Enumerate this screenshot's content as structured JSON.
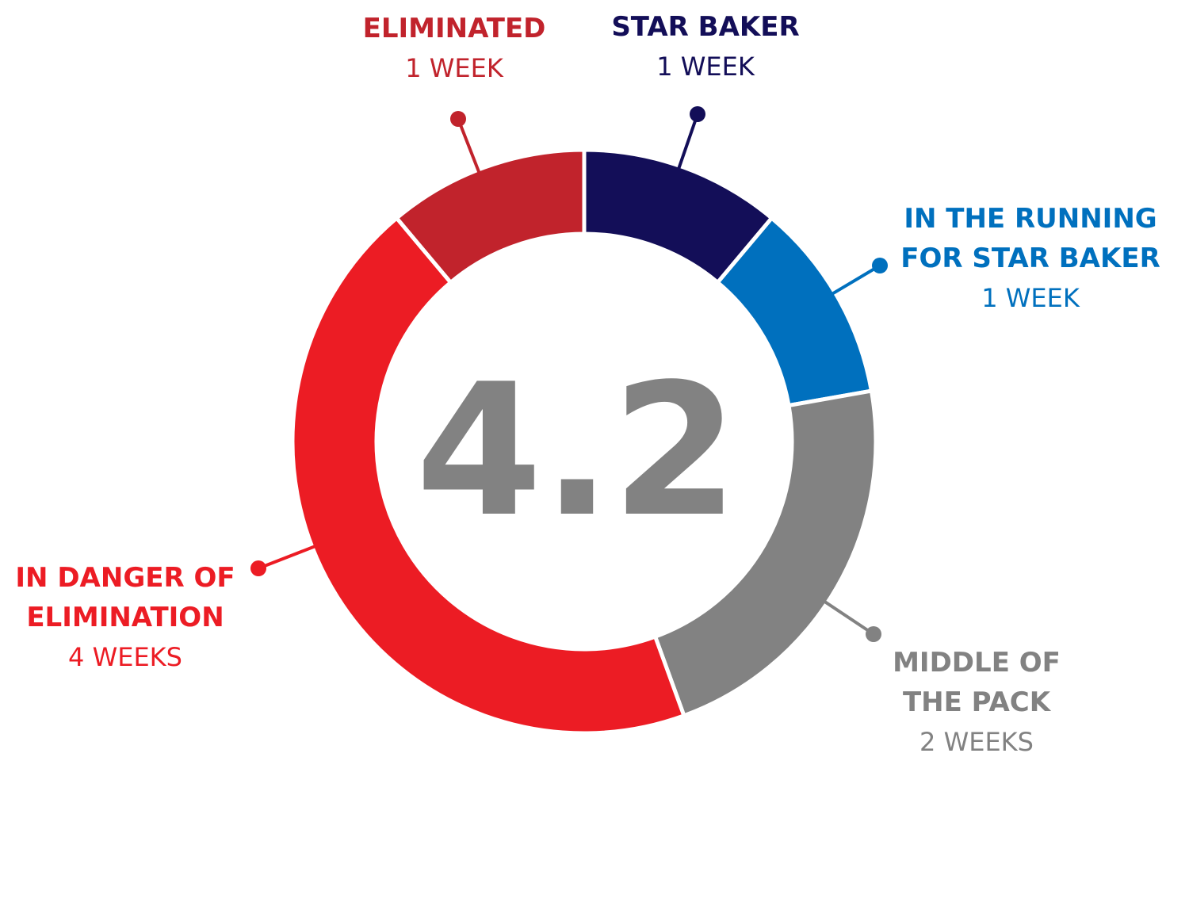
{
  "chart_data": {
    "type": "pie",
    "variant": "donut",
    "center_value": "4.2",
    "slices": [
      {
        "name": "STAR BAKER",
        "count_label": "1 WEEK",
        "value": 1,
        "color": "#130e58",
        "label_lines": [
          "STAR BAKER"
        ]
      },
      {
        "name": "IN THE RUNNING FOR STAR BAKER",
        "count_label": "1 WEEK",
        "value": 1,
        "color": "#0070be",
        "label_lines": [
          "IN THE RUNNING",
          "FOR STAR BAKER"
        ]
      },
      {
        "name": "MIDDLE OF THE PACK",
        "count_label": "2 WEEKS",
        "value": 2,
        "color": "#828282",
        "label_lines": [
          "MIDDLE OF",
          "THE PACK"
        ]
      },
      {
        "name": "IN DANGER OF ELIMINATION",
        "count_label": "4 WEEKS",
        "value": 4,
        "color": "#ec1c24",
        "label_lines": [
          "IN DANGER OF",
          "ELIMINATION"
        ]
      },
      {
        "name": "ELIMINATED",
        "count_label": "1 WEEK",
        "value": 1,
        "color": "#c1232c",
        "label_lines": [
          "ELIMINATED"
        ]
      }
    ]
  }
}
